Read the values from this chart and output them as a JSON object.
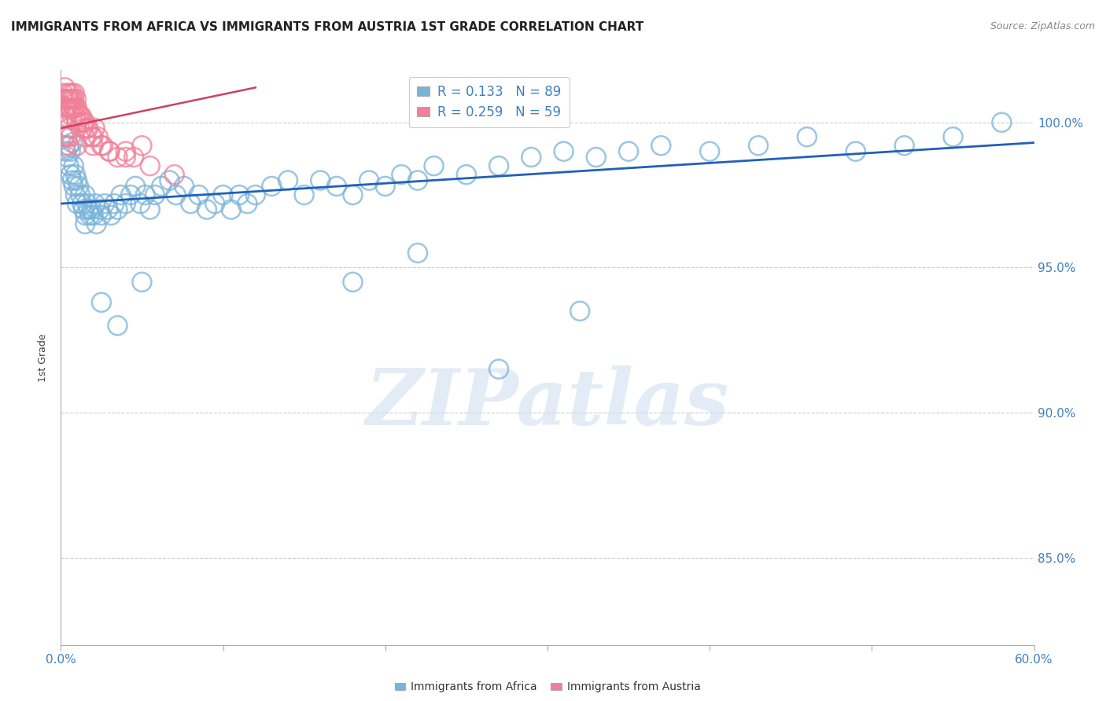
{
  "title": "IMMIGRANTS FROM AFRICA VS IMMIGRANTS FROM AUSTRIA 1ST GRADE CORRELATION CHART",
  "source": "Source: ZipAtlas.com",
  "ylabel": "1st Grade",
  "xlim": [
    0.0,
    60.0
  ],
  "ylim": [
    82.0,
    101.8
  ],
  "yticks": [
    85.0,
    90.0,
    95.0,
    100.0
  ],
  "ytick_labels": [
    "85.0%",
    "90.0%",
    "95.0%",
    "100.0%"
  ],
  "legend_r_africa": "R = 0.133",
  "legend_n_africa": "N = 89",
  "legend_r_austria": "R = 0.259",
  "legend_n_austria": "N = 59",
  "africa_color": "#7ab3d9",
  "austria_color": "#f08098",
  "trendline_color": "#2060b8",
  "austria_trendline_color": "#d04060",
  "africa_scatter_x": [
    0.2,
    0.3,
    0.4,
    0.5,
    0.5,
    0.6,
    0.6,
    0.7,
    0.7,
    0.8,
    0.8,
    0.9,
    0.9,
    1.0,
    1.0,
    1.1,
    1.2,
    1.3,
    1.4,
    1.5,
    1.5,
    1.6,
    1.7,
    1.8,
    1.9,
    2.0,
    2.1,
    2.2,
    2.4,
    2.5,
    2.7,
    2.9,
    3.1,
    3.3,
    3.5,
    3.7,
    4.0,
    4.3,
    4.6,
    4.9,
    5.2,
    5.5,
    5.8,
    6.2,
    6.7,
    7.1,
    7.6,
    8.0,
    8.5,
    9.0,
    9.5,
    10.0,
    10.5,
    11.0,
    11.5,
    12.0,
    13.0,
    14.0,
    15.0,
    16.0,
    17.0,
    18.0,
    19.0,
    20.0,
    21.0,
    22.0,
    23.0,
    25.0,
    27.0,
    29.0,
    31.0,
    33.0,
    35.0,
    37.0,
    40.0,
    43.0,
    46.0,
    49.0,
    52.0,
    55.0,
    58.0,
    32.0,
    27.0,
    22.0,
    18.0,
    5.0,
    3.5,
    2.5,
    1.5
  ],
  "africa_scatter_y": [
    99.5,
    99.0,
    98.8,
    99.2,
    98.5,
    99.0,
    98.2,
    99.3,
    98.0,
    98.5,
    97.8,
    98.2,
    97.5,
    98.0,
    97.2,
    97.8,
    97.5,
    97.2,
    97.0,
    97.5,
    96.8,
    97.2,
    97.0,
    96.8,
    97.0,
    96.8,
    97.2,
    96.5,
    97.0,
    96.8,
    97.2,
    97.0,
    96.8,
    97.2,
    97.0,
    97.5,
    97.2,
    97.5,
    97.8,
    97.2,
    97.5,
    97.0,
    97.5,
    97.8,
    98.0,
    97.5,
    97.8,
    97.2,
    97.5,
    97.0,
    97.2,
    97.5,
    97.0,
    97.5,
    97.2,
    97.5,
    97.8,
    98.0,
    97.5,
    98.0,
    97.8,
    97.5,
    98.0,
    97.8,
    98.2,
    98.0,
    98.5,
    98.2,
    98.5,
    98.8,
    99.0,
    98.8,
    99.0,
    99.2,
    99.0,
    99.2,
    99.5,
    99.0,
    99.2,
    99.5,
    100.0,
    93.5,
    91.5,
    95.5,
    94.5,
    94.5,
    93.0,
    93.8,
    96.5
  ],
  "austria_scatter_x": [
    0.1,
    0.15,
    0.2,
    0.25,
    0.3,
    0.35,
    0.4,
    0.45,
    0.5,
    0.55,
    0.6,
    0.65,
    0.7,
    0.75,
    0.8,
    0.85,
    0.9,
    0.95,
    1.0,
    1.1,
    1.2,
    1.3,
    1.4,
    1.5,
    1.7,
    1.9,
    2.1,
    2.3,
    2.6,
    3.0,
    3.5,
    4.0,
    4.5,
    5.0,
    0.3,
    0.4,
    0.5,
    0.6,
    0.7,
    0.8,
    0.9,
    1.0,
    1.2,
    1.4,
    1.6,
    2.0,
    2.5,
    0.2,
    0.3,
    0.4,
    0.5,
    0.6,
    1.0,
    1.5,
    2.0,
    3.0,
    4.0,
    5.5,
    7.0
  ],
  "austria_scatter_y": [
    100.8,
    101.0,
    100.8,
    101.2,
    100.5,
    100.8,
    101.0,
    100.5,
    100.8,
    101.0,
    100.5,
    100.8,
    101.0,
    100.5,
    100.8,
    101.0,
    100.5,
    100.8,
    100.5,
    100.3,
    100.0,
    100.2,
    99.8,
    100.0,
    99.8,
    99.5,
    99.8,
    99.5,
    99.2,
    99.0,
    98.8,
    99.0,
    98.8,
    99.2,
    100.2,
    100.5,
    100.8,
    100.5,
    100.2,
    100.5,
    100.2,
    100.0,
    100.2,
    100.0,
    99.8,
    99.5,
    99.2,
    99.5,
    99.2,
    99.5,
    99.8,
    99.5,
    99.2,
    99.5,
    99.2,
    99.0,
    98.8,
    98.5,
    98.2
  ],
  "trendline_x": [
    0.0,
    60.0
  ],
  "trendline_y": [
    97.2,
    99.3
  ],
  "austria_trendline_x": [
    0.0,
    12.0
  ],
  "austria_trendline_y": [
    99.8,
    101.2
  ],
  "background_color": "#ffffff",
  "watermark_text": "ZIPatlas",
  "grid_color": "#cccccc",
  "xtick_positions": [
    0,
    10,
    20,
    30,
    40,
    50,
    60
  ]
}
